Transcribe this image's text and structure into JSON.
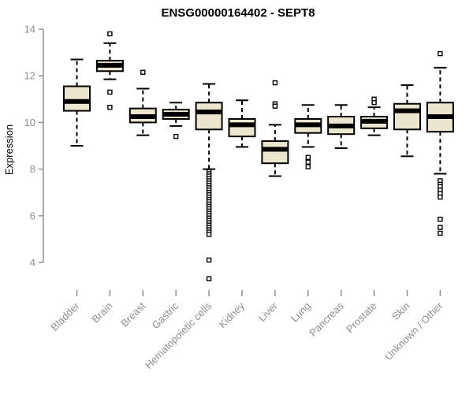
{
  "chart_data": {
    "type": "boxplot",
    "title": "ENSG00000164402 - SEPT8",
    "ylabel": "Expression",
    "ylim": [
      4,
      14
    ],
    "yticks": [
      4,
      6,
      8,
      10,
      12,
      14
    ],
    "grid": false,
    "legend": "none",
    "categories": [
      "Bladder",
      "Brain",
      "Breast",
      "Gastric",
      "Hematopoietic cells",
      "Kidney",
      "Liver",
      "Lung",
      "Pancreas",
      "Prostate",
      "Skin",
      "Unknown / Other"
    ],
    "boxes": [
      {
        "category": "Bladder",
        "low": 9.0,
        "q1": 10.5,
        "median": 10.9,
        "q3": 11.55,
        "high": 12.7,
        "outliers": []
      },
      {
        "category": "Brain",
        "low": 11.85,
        "q1": 12.2,
        "median": 12.45,
        "q3": 12.65,
        "high": 13.4,
        "outliers": [
          13.8,
          11.3,
          10.65
        ]
      },
      {
        "category": "Breast",
        "low": 9.45,
        "q1": 10.0,
        "median": 10.25,
        "q3": 10.6,
        "high": 11.45,
        "outliers": [
          12.15
        ]
      },
      {
        "category": "Gastric",
        "low": 9.85,
        "q1": 10.15,
        "median": 10.35,
        "q3": 10.55,
        "high": 10.85,
        "outliers": [
          9.4
        ]
      },
      {
        "category": "Hematopoietic cells",
        "low": 8.0,
        "q1": 9.7,
        "median": 10.45,
        "q3": 10.85,
        "high": 11.65,
        "outliers": [
          7.9,
          7.8,
          7.7,
          7.6,
          7.5,
          7.4,
          7.3,
          7.2,
          7.1,
          7.0,
          6.9,
          6.8,
          6.7,
          6.6,
          6.5,
          6.4,
          6.3,
          6.2,
          6.1,
          6.0,
          5.9,
          5.8,
          5.7,
          5.6,
          5.5,
          5.4,
          5.3,
          5.2,
          4.1,
          3.3
        ]
      },
      {
        "category": "Kidney",
        "low": 8.95,
        "q1": 9.4,
        "median": 9.9,
        "q3": 10.15,
        "high": 10.95,
        "outliers": []
      },
      {
        "category": "Liver",
        "low": 7.7,
        "q1": 8.25,
        "median": 8.85,
        "q3": 9.2,
        "high": 9.9,
        "outliers": [
          11.7,
          10.8,
          10.7
        ]
      },
      {
        "category": "Lung",
        "low": 8.95,
        "q1": 9.55,
        "median": 9.9,
        "q3": 10.15,
        "high": 10.75,
        "outliers": [
          8.5,
          8.3,
          8.1
        ]
      },
      {
        "category": "Pancreas",
        "low": 8.9,
        "q1": 9.5,
        "median": 9.85,
        "q3": 10.25,
        "high": 10.75,
        "outliers": []
      },
      {
        "category": "Prostate",
        "low": 9.45,
        "q1": 9.75,
        "median": 10.05,
        "q3": 10.25,
        "high": 10.65,
        "outliers": [
          11.0,
          10.85
        ]
      },
      {
        "category": "Skin",
        "low": 8.55,
        "q1": 9.7,
        "median": 10.5,
        "q3": 10.8,
        "high": 11.6,
        "outliers": []
      },
      {
        "category": "Unknown / Other",
        "low": 7.8,
        "q1": 9.6,
        "median": 10.25,
        "q3": 10.85,
        "high": 12.35,
        "outliers": [
          12.95,
          7.5,
          7.35,
          7.25,
          7.1,
          6.95,
          6.8,
          5.85,
          5.5,
          5.25
        ]
      }
    ],
    "colors": {
      "box_fill": "#ece6cf",
      "box_border": "#000000",
      "median": "#000000",
      "outlier_fill": "#ffffff",
      "axis": "#8f8f8f",
      "tick_label": "#8f8f8f",
      "title": "#000000",
      "background": "#ffffff"
    }
  }
}
